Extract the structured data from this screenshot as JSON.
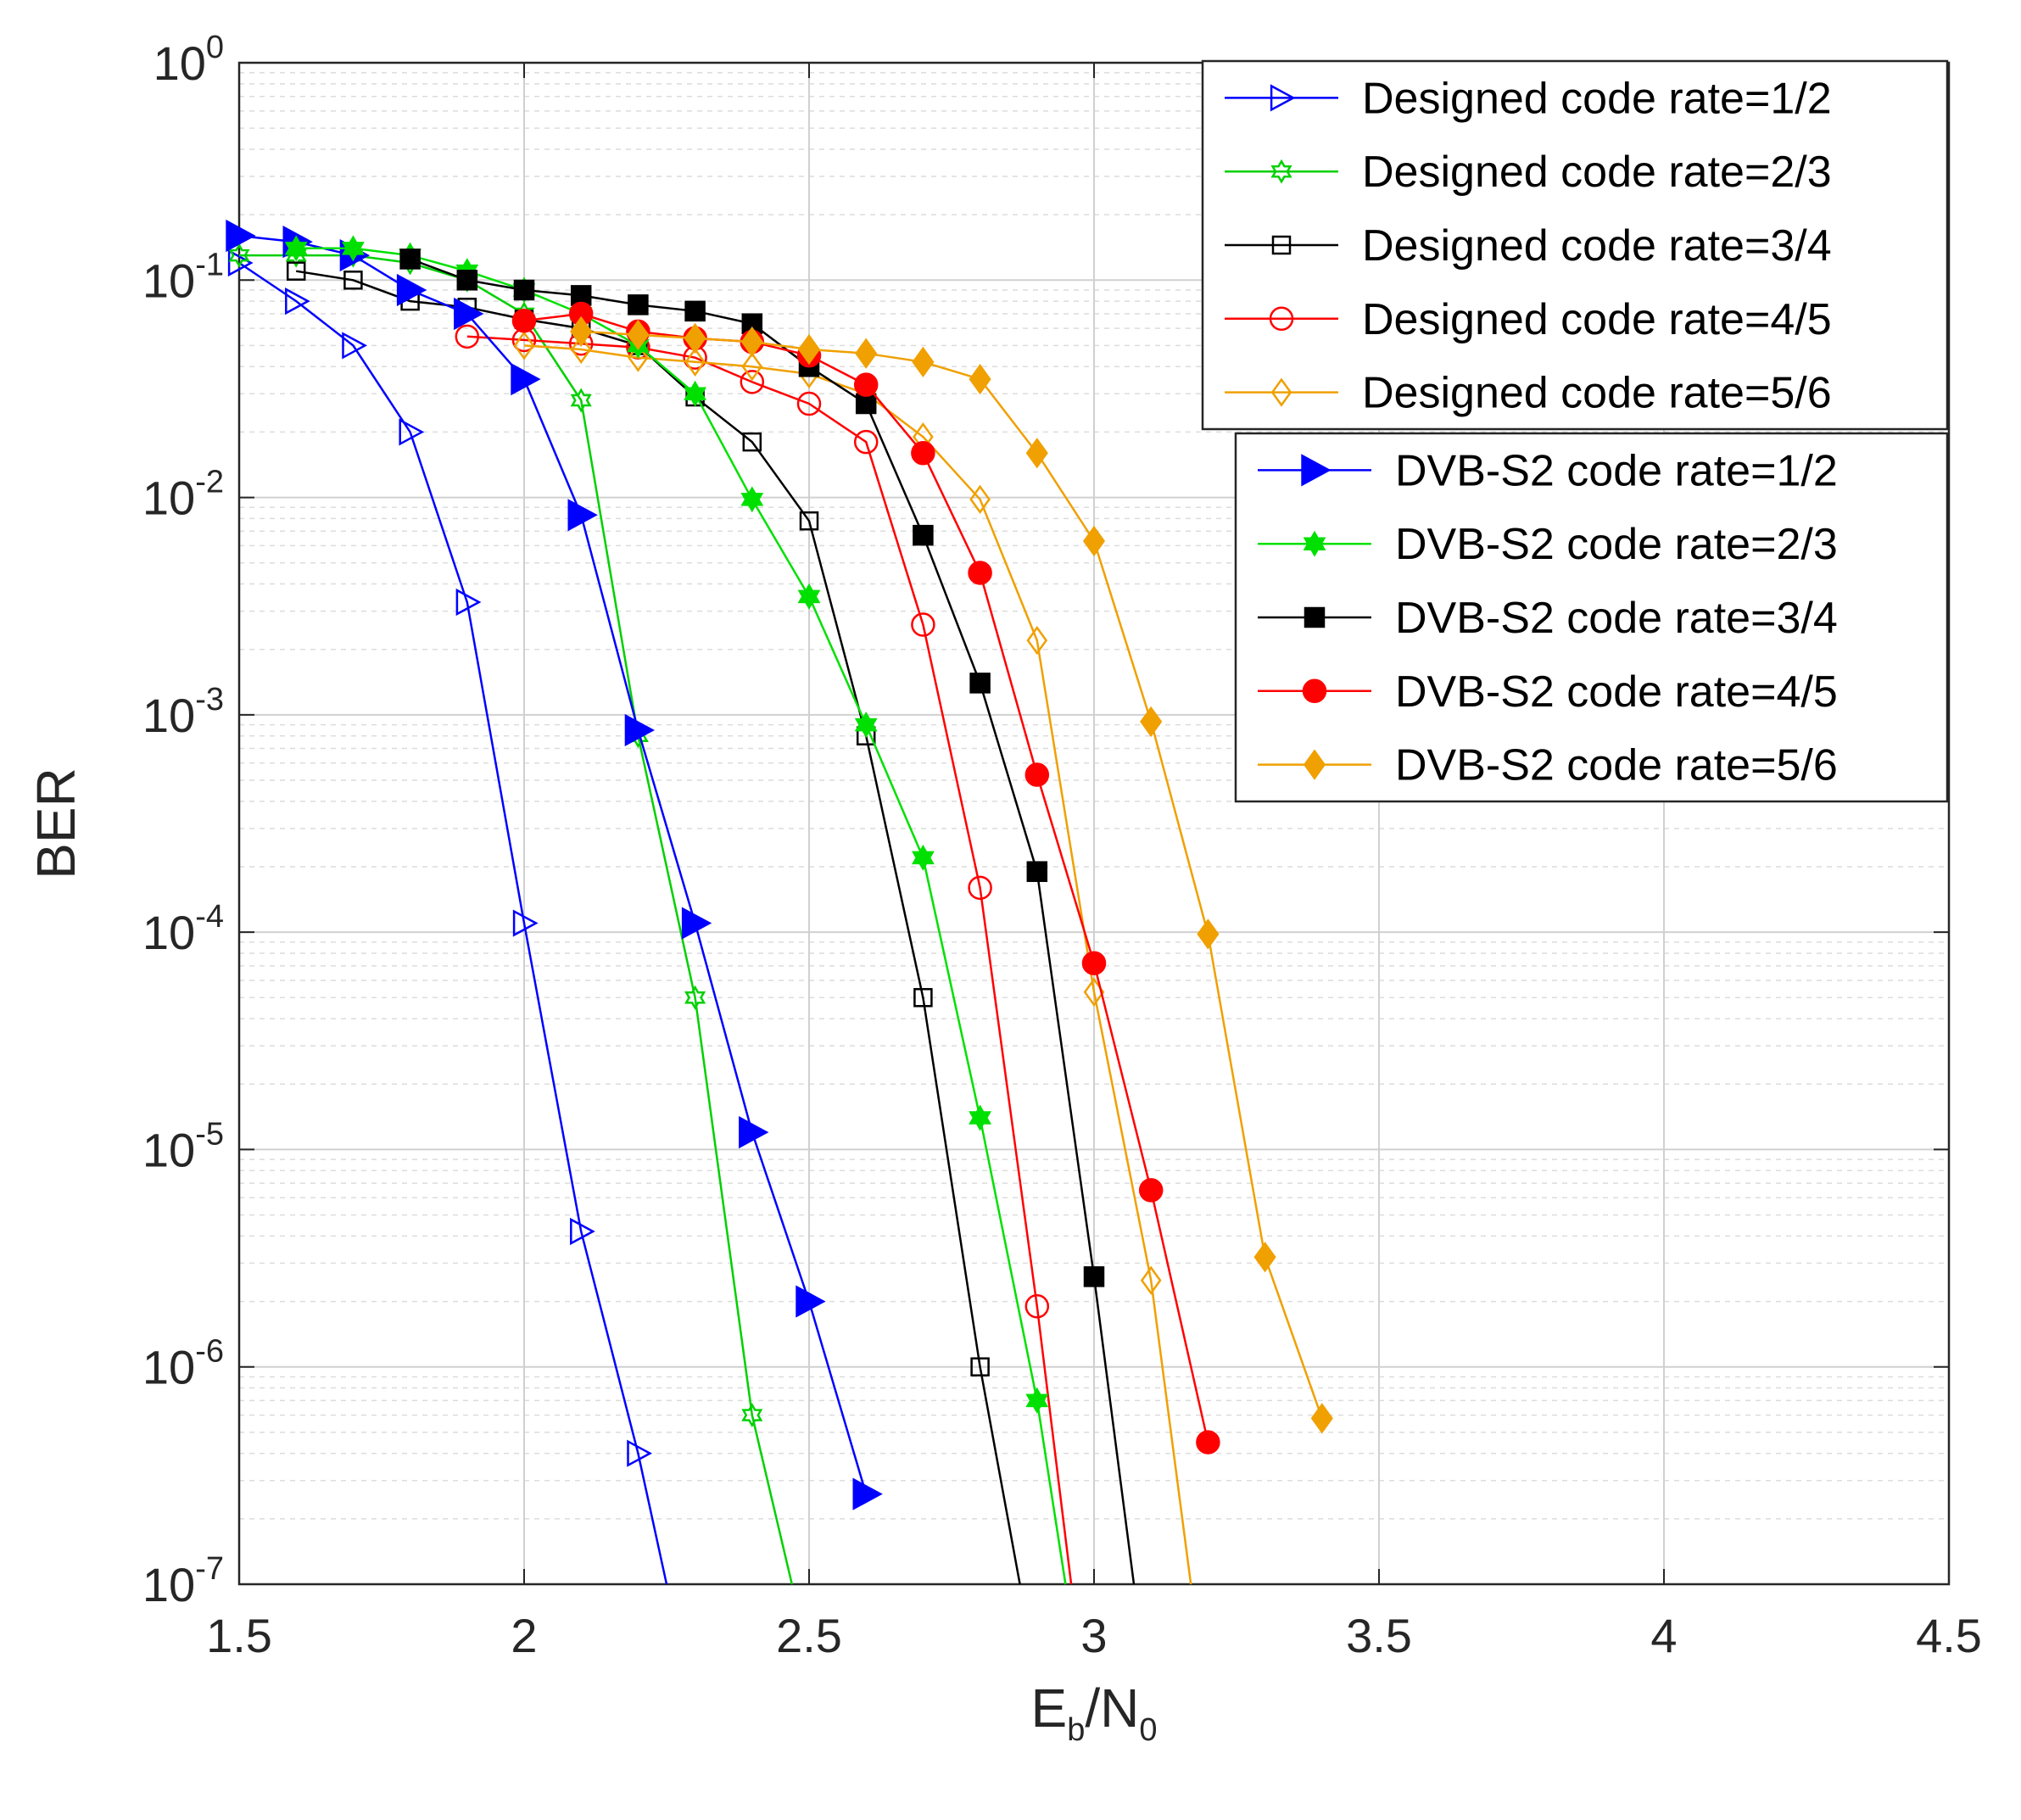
{
  "chart_data": {
    "type": "line",
    "x_scale": "linear",
    "y_scale": "log",
    "xlim": [
      1.5,
      4.5
    ],
    "ylim": [
      1e-07,
      1
    ],
    "x_ticks": [
      "1.5",
      "2",
      "2.5",
      "3",
      "3.5",
      "4",
      "4.5"
    ],
    "y_ticks": [
      {
        "base": "10",
        "exp": "0"
      },
      {
        "base": "10",
        "exp": "-1"
      },
      {
        "base": "10",
        "exp": "-2"
      },
      {
        "base": "10",
        "exp": "-3"
      },
      {
        "base": "10",
        "exp": "-4"
      },
      {
        "base": "10",
        "exp": "-5"
      },
      {
        "base": "10",
        "exp": "-6"
      },
      {
        "base": "10",
        "exp": "-7"
      }
    ],
    "xlabel": {
      "main": "E",
      "sub": "b",
      "sep": "/N",
      "sub2": "0"
    },
    "ylabel": "BER",
    "grid": true,
    "legend_groups": [
      "designed",
      "dvb"
    ],
    "series": [
      {
        "name": "Designed code rate=1/2",
        "group": "designed",
        "color": "#0000ff",
        "marker": "triangle-right",
        "filled": false,
        "x": [
          1.5,
          1.6,
          1.7,
          1.8,
          1.9,
          2.0,
          2.1,
          2.2,
          2.25
        ],
        "y": [
          0.12,
          0.08,
          0.05,
          0.02,
          0.0033,
          0.00011,
          4.2e-06,
          4e-07,
          1e-07
        ]
      },
      {
        "name": "Designed code rate=2/3",
        "group": "designed",
        "color": "#00d000",
        "marker": "hexagram",
        "filled": false,
        "x": [
          1.5,
          1.6,
          1.7,
          1.8,
          1.9,
          2.0,
          2.1,
          2.2,
          2.3,
          2.4,
          2.47
        ],
        "y": [
          0.13,
          0.13,
          0.13,
          0.12,
          0.1,
          0.07,
          0.028,
          0.0008,
          5e-05,
          6e-07,
          1e-07
        ]
      },
      {
        "name": "Designed code rate=3/4",
        "group": "designed",
        "color": "#000000",
        "marker": "square",
        "filled": false,
        "x": [
          1.6,
          1.7,
          1.8,
          1.9,
          2.0,
          2.1,
          2.2,
          2.3,
          2.4,
          2.5,
          2.6,
          2.7,
          2.8,
          2.87
        ],
        "y": [
          0.11,
          0.1,
          0.08,
          0.075,
          0.066,
          0.06,
          0.05,
          0.029,
          0.018,
          0.0078,
          0.0008,
          5e-05,
          1e-06,
          1e-07
        ]
      },
      {
        "name": "Designed code rate=4/5",
        "group": "designed",
        "color": "#ff0000",
        "marker": "circle",
        "filled": false,
        "x": [
          1.9,
          2.0,
          2.1,
          2.2,
          2.3,
          2.4,
          2.5,
          2.6,
          2.7,
          2.8,
          2.9,
          2.96
        ],
        "y": [
          0.055,
          0.053,
          0.051,
          0.049,
          0.044,
          0.034,
          0.027,
          0.018,
          0.0026,
          0.00016,
          1.9e-06,
          1e-07
        ]
      },
      {
        "name": "Designed code rate=5/6",
        "group": "designed",
        "color": "#f0a000",
        "marker": "diamond",
        "filled": false,
        "x": [
          2.0,
          2.1,
          2.2,
          2.3,
          2.4,
          2.5,
          2.6,
          2.7,
          2.8,
          2.9,
          3.0,
          3.1,
          3.17
        ],
        "y": [
          0.05,
          0.048,
          0.044,
          0.042,
          0.04,
          0.037,
          0.03,
          0.019,
          0.0098,
          0.0022,
          5.3e-05,
          2.5e-06,
          1e-07
        ]
      },
      {
        "name": "DVB-S2 code rate=1/2",
        "group": "dvb",
        "color": "#0000ff",
        "marker": "triangle-right",
        "filled": true,
        "x": [
          1.5,
          1.6,
          1.7,
          1.8,
          1.9,
          2.0,
          2.1,
          2.2,
          2.3,
          2.4,
          2.5,
          2.6
        ],
        "y": [
          0.16,
          0.15,
          0.13,
          0.09,
          0.07,
          0.035,
          0.0083,
          0.00085,
          0.00011,
          1.2e-05,
          2e-06,
          2.6e-07
        ]
      },
      {
        "name": "DVB-S2 code rate=2/3",
        "group": "dvb",
        "color": "#00e000",
        "marker": "hexagram",
        "filled": true,
        "x": [
          1.6,
          1.7,
          1.8,
          1.9,
          2.0,
          2.1,
          2.2,
          2.3,
          2.4,
          2.5,
          2.6,
          2.7,
          2.8,
          2.9,
          2.95
        ],
        "y": [
          0.14,
          0.14,
          0.13,
          0.11,
          0.09,
          0.07,
          0.05,
          0.03,
          0.0098,
          0.0035,
          0.0009,
          0.00022,
          1.4e-05,
          7e-07,
          1e-07
        ]
      },
      {
        "name": "DVB-S2 code rate=3/4",
        "group": "dvb",
        "color": "#000000",
        "marker": "square",
        "filled": true,
        "x": [
          1.8,
          1.9,
          2.0,
          2.1,
          2.2,
          2.3,
          2.4,
          2.5,
          2.6,
          2.7,
          2.8,
          2.9,
          3.0,
          3.07
        ],
        "y": [
          0.125,
          0.1,
          0.09,
          0.085,
          0.077,
          0.072,
          0.063,
          0.04,
          0.027,
          0.0067,
          0.0014,
          0.00019,
          2.6e-06,
          1e-07
        ]
      },
      {
        "name": "DVB-S2 code rate=4/5",
        "group": "dvb",
        "color": "#ff0000",
        "marker": "circle",
        "filled": true,
        "x": [
          2.0,
          2.1,
          2.2,
          2.3,
          2.4,
          2.5,
          2.6,
          2.7,
          2.8,
          2.9,
          3.0,
          3.1,
          3.2
        ],
        "y": [
          0.065,
          0.07,
          0.058,
          0.054,
          0.052,
          0.045,
          0.033,
          0.016,
          0.0045,
          0.00053,
          7.2e-05,
          6.5e-06,
          4.5e-07
        ]
      },
      {
        "name": "DVB-S2 code rate=5/6",
        "group": "dvb",
        "color": "#f0a000",
        "marker": "diamond",
        "filled": true,
        "x": [
          2.1,
          2.2,
          2.3,
          2.4,
          2.5,
          2.6,
          2.7,
          2.8,
          2.9,
          3.0,
          3.1,
          3.2,
          3.3,
          3.4
        ],
        "y": [
          0.058,
          0.056,
          0.054,
          0.052,
          0.048,
          0.046,
          0.042,
          0.035,
          0.016,
          0.0063,
          0.00093,
          9.8e-05,
          3.2e-06,
          5.8e-07
        ]
      }
    ]
  }
}
